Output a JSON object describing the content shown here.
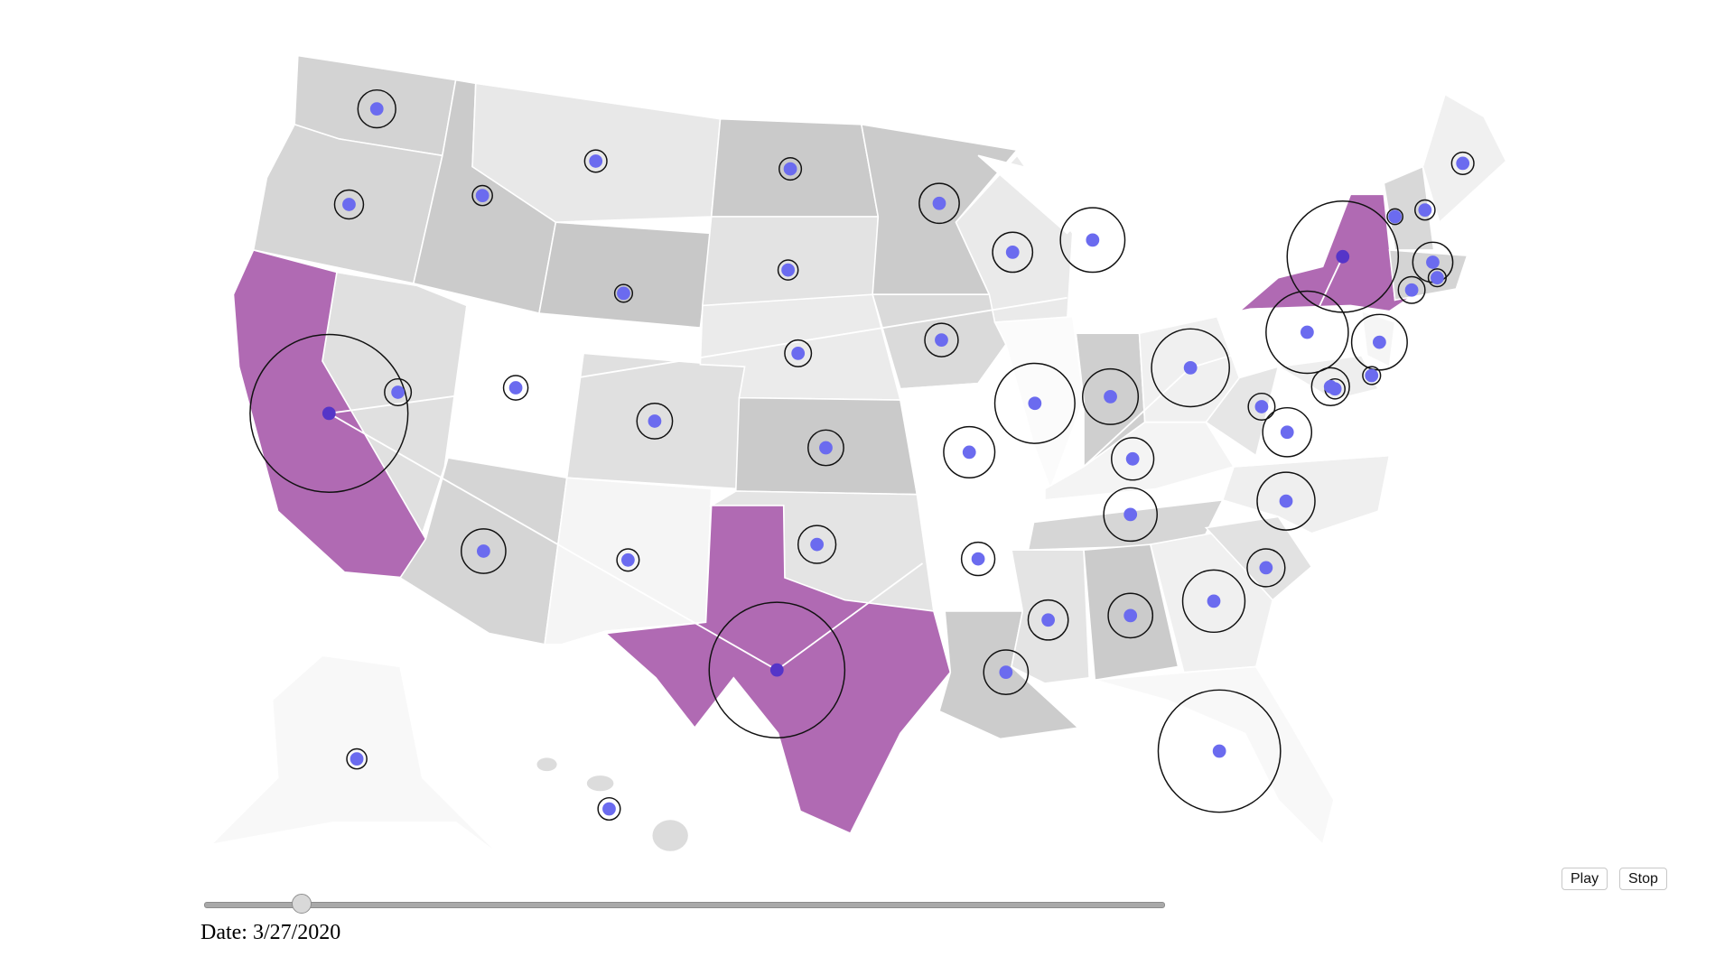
{
  "controls": {
    "play": "Play",
    "stop": "Stop",
    "date": "Date: 3/27/2020"
  }
}
